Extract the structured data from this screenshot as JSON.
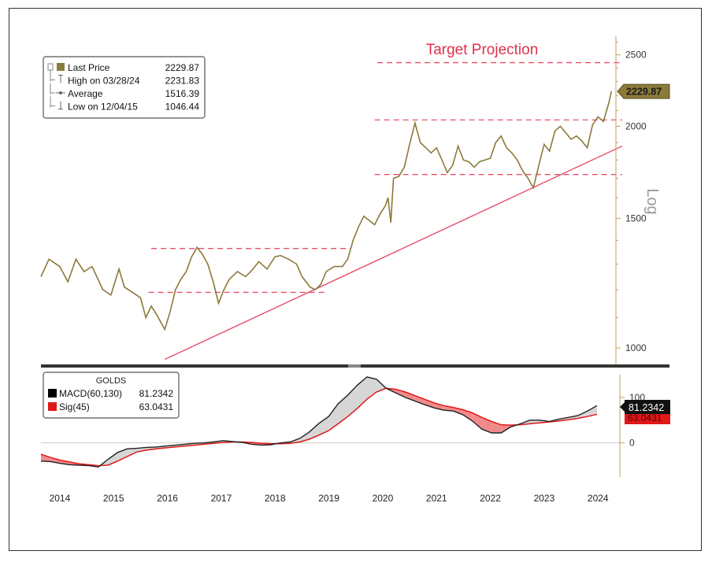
{
  "chart_data": [
    {
      "type": "line",
      "title": "Target Projection",
      "ylabel": "Log",
      "yscale": "log",
      "ylim": [
        950,
        2650
      ],
      "xlim": [
        2013.65,
        2024.45
      ],
      "x_tick_labels": [
        "2014",
        "2015",
        "2016",
        "2017",
        "2018",
        "2019",
        "2020",
        "2021",
        "2022",
        "2023",
        "2024"
      ],
      "y_ticks": [
        {
          "value": 1000,
          "label": "1000"
        },
        {
          "value": 1500,
          "label": "1500"
        },
        {
          "value": 2000,
          "label": "2000"
        },
        {
          "value": 2500,
          "label": "2500"
        }
      ],
      "legend": {
        "position": "top-left",
        "entries": [
          {
            "label": "Last Price",
            "value": "2229.87"
          },
          {
            "label": "High on 03/28/24",
            "value": "2231.83"
          },
          {
            "label": "Average",
            "value": "1516.39"
          },
          {
            "label": "Low on 12/04/15",
            "value": "1046.44"
          }
        ]
      },
      "last_price_tag": "2229.87",
      "series": [
        {
          "name": "Last Price",
          "color": "#8b7a3a",
          "points": [
            [
              2013.65,
              1250
            ],
            [
              2013.8,
              1320
            ],
            [
              2014.0,
              1290
            ],
            [
              2014.15,
              1230
            ],
            [
              2014.3,
              1320
            ],
            [
              2014.45,
              1270
            ],
            [
              2014.6,
              1290
            ],
            [
              2014.8,
              1200
            ],
            [
              2014.95,
              1180
            ],
            [
              2015.1,
              1280
            ],
            [
              2015.2,
              1210
            ],
            [
              2015.35,
              1190
            ],
            [
              2015.5,
              1170
            ],
            [
              2015.6,
              1100
            ],
            [
              2015.7,
              1140
            ],
            [
              2015.8,
              1110
            ],
            [
              2015.95,
              1060
            ],
            [
              2016.05,
              1120
            ],
            [
              2016.15,
              1200
            ],
            [
              2016.25,
              1240
            ],
            [
              2016.35,
              1270
            ],
            [
              2016.45,
              1330
            ],
            [
              2016.55,
              1370
            ],
            [
              2016.65,
              1340
            ],
            [
              2016.75,
              1300
            ],
            [
              2016.85,
              1230
            ],
            [
              2016.95,
              1150
            ],
            [
              2017.05,
              1200
            ],
            [
              2017.15,
              1240
            ],
            [
              2017.3,
              1270
            ],
            [
              2017.45,
              1250
            ],
            [
              2017.55,
              1270
            ],
            [
              2017.7,
              1310
            ],
            [
              2017.85,
              1280
            ],
            [
              2018.0,
              1330
            ],
            [
              2018.1,
              1335
            ],
            [
              2018.25,
              1320
            ],
            [
              2018.4,
              1300
            ],
            [
              2018.5,
              1250
            ],
            [
              2018.65,
              1210
            ],
            [
              2018.75,
              1200
            ],
            [
              2018.85,
              1220
            ],
            [
              2018.95,
              1270
            ],
            [
              2019.1,
              1290
            ],
            [
              2019.25,
              1290
            ],
            [
              2019.35,
              1320
            ],
            [
              2019.45,
              1400
            ],
            [
              2019.55,
              1460
            ],
            [
              2019.65,
              1510
            ],
            [
              2019.75,
              1490
            ],
            [
              2019.85,
              1470
            ],
            [
              2019.95,
              1520
            ],
            [
              2020.05,
              1560
            ],
            [
              2020.1,
              1600
            ],
            [
              2020.15,
              1480
            ],
            [
              2020.2,
              1700
            ],
            [
              2020.3,
              1710
            ],
            [
              2020.4,
              1760
            ],
            [
              2020.5,
              1890
            ],
            [
              2020.6,
              2020
            ],
            [
              2020.7,
              1900
            ],
            [
              2020.8,
              1870
            ],
            [
              2020.9,
              1840
            ],
            [
              2021.0,
              1870
            ],
            [
              2021.1,
              1800
            ],
            [
              2021.2,
              1730
            ],
            [
              2021.3,
              1770
            ],
            [
              2021.4,
              1880
            ],
            [
              2021.5,
              1800
            ],
            [
              2021.6,
              1790
            ],
            [
              2021.7,
              1760
            ],
            [
              2021.8,
              1790
            ],
            [
              2021.9,
              1800
            ],
            [
              2022.0,
              1810
            ],
            [
              2022.1,
              1900
            ],
            [
              2022.2,
              1940
            ],
            [
              2022.3,
              1870
            ],
            [
              2022.4,
              1840
            ],
            [
              2022.5,
              1800
            ],
            [
              2022.6,
              1740
            ],
            [
              2022.7,
              1700
            ],
            [
              2022.8,
              1650
            ],
            [
              2022.9,
              1770
            ],
            [
              2023.0,
              1890
            ],
            [
              2023.1,
              1850
            ],
            [
              2023.2,
              1970
            ],
            [
              2023.3,
              2000
            ],
            [
              2023.4,
              1960
            ],
            [
              2023.5,
              1920
            ],
            [
              2023.6,
              1940
            ],
            [
              2023.7,
              1910
            ],
            [
              2023.8,
              1870
            ],
            [
              2023.9,
              2010
            ],
            [
              2024.0,
              2060
            ],
            [
              2024.1,
              2030
            ],
            [
              2024.2,
              2150
            ],
            [
              2024.25,
              2230
            ]
          ]
        }
      ],
      "annotations": {
        "target_line": {
          "y": 2440,
          "x_start": 2019.9,
          "x_end": 2024.45,
          "color": "#e8506a"
        },
        "support_resistance_lines": [
          {
            "y": 1365,
            "x_start": 2015.7,
            "x_end": 2019.4
          },
          {
            "y": 1190,
            "x_start": 2015.65,
            "x_end": 2018.95
          },
          {
            "y": 2040,
            "x_start": 2019.85,
            "x_end": 2024.45
          },
          {
            "y": 1720,
            "x_start": 2019.85,
            "x_end": 2024.45
          }
        ],
        "trend_line": {
          "from": [
            2015.95,
            965
          ],
          "to": [
            2024.45,
            1880
          ],
          "color": "#e8506a"
        }
      }
    },
    {
      "type": "line",
      "title": "GOLDS",
      "ylim": [
        -75,
        150
      ],
      "xlim": [
        2013.65,
        2024.45
      ],
      "y_ticks": [
        {
          "value": 0,
          "label": "0"
        },
        {
          "value": 100,
          "label": "100"
        }
      ],
      "legend": {
        "position": "top-left",
        "entries": [
          {
            "label": "MACD(60,130)",
            "value": "81.2342",
            "color": "#000000"
          },
          {
            "label": "Sig(45)",
            "value": "63.0431",
            "color": "#e01818"
          }
        ]
      },
      "last_value_tags": [
        "81.2342",
        "63.0431"
      ],
      "series": [
        {
          "name": "MACD(60,130)",
          "color": "#222222",
          "values": [
            -40,
            -41,
            -45,
            -48,
            -49,
            -50,
            -53,
            -36,
            -21,
            -13,
            -12,
            -10,
            -9,
            -7,
            -5,
            -3,
            -1,
            0,
            2,
            5,
            3,
            1,
            -3,
            -5,
            -4,
            0,
            2,
            10,
            24,
            43,
            58,
            86,
            105,
            127,
            145,
            140,
            120,
            110,
            100,
            92,
            84,
            77,
            72,
            70,
            62,
            48,
            30,
            22,
            22,
            35,
            42,
            50,
            50,
            47,
            52,
            56,
            60,
            70,
            82
          ]
        },
        {
          "name": "Sig(45)",
          "color": "#e01818",
          "values": [
            -25,
            -32,
            -38,
            -42,
            -46,
            -48,
            -50,
            -49,
            -40,
            -30,
            -20,
            -16,
            -13,
            -11,
            -9,
            -7,
            -5,
            -3,
            -1,
            1,
            2,
            2,
            1,
            -1,
            -2,
            -2,
            -1,
            2,
            8,
            17,
            27,
            42,
            58,
            76,
            96,
            112,
            120,
            118,
            112,
            104,
            96,
            88,
            82,
            78,
            73,
            66,
            56,
            47,
            40,
            39,
            40,
            42,
            44,
            46,
            48,
            51,
            54,
            58,
            63
          ]
        }
      ]
    }
  ]
}
